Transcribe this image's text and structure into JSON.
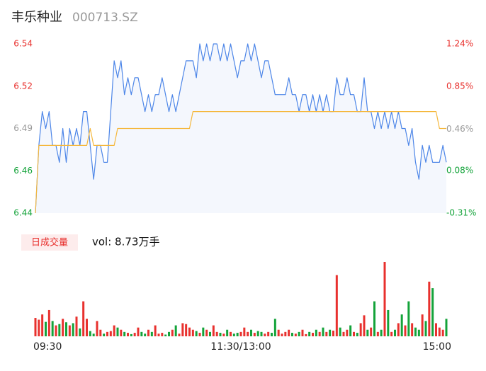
{
  "header": {
    "name": "丰乐种业",
    "code": "000713.SZ"
  },
  "chart_data": [
    {
      "type": "line",
      "xlim": [
        0,
        120
      ],
      "xticks": [
        {
          "value": 0,
          "label": "09:30"
        },
        {
          "value": 60,
          "label": "11:30/13:00"
        },
        {
          "value": 120,
          "label": "15:00"
        }
      ],
      "ylim": [
        6.44,
        6.54
      ],
      "yticks": [
        {
          "value": 6.44,
          "label": "6.44"
        },
        {
          "value": 6.465,
          "label": "6.46"
        },
        {
          "value": 6.49,
          "label": "6.49"
        },
        {
          "value": 6.515,
          "label": "6.52"
        },
        {
          "value": 6.54,
          "label": "6.54"
        }
      ],
      "ytick_colors": [
        "#14a33a",
        "#14a33a",
        "#999999",
        "#e8312e",
        "#e8312e"
      ],
      "y2lim": [
        -0.31,
        1.24
      ],
      "y2ticks": [
        {
          "value": -0.31,
          "label": "-0.31%"
        },
        {
          "value": 0.08,
          "label": "0.08%"
        },
        {
          "value": 0.46,
          "label": "0.46%"
        },
        {
          "value": 0.85,
          "label": "0.85%"
        },
        {
          "value": 1.24,
          "label": "1.24%"
        }
      ],
      "y2tick_colors": [
        "#14a33a",
        "#14a33a",
        "#999999",
        "#e8312e",
        "#e8312e"
      ],
      "area_color": "#f4f7fd",
      "series": [
        {
          "color": "#4d86e8",
          "values": [
            6.44,
            6.48,
            6.5,
            6.49,
            6.5,
            6.48,
            6.48,
            6.47,
            6.49,
            6.47,
            6.49,
            6.48,
            6.49,
            6.48,
            6.5,
            6.5,
            6.48,
            6.46,
            6.48,
            6.48,
            6.47,
            6.47,
            6.5,
            6.53,
            6.52,
            6.53,
            6.51,
            6.52,
            6.51,
            6.52,
            6.52,
            6.51,
            6.5,
            6.51,
            6.5,
            6.51,
            6.51,
            6.52,
            6.51,
            6.5,
            6.51,
            6.5,
            6.51,
            6.52,
            6.53,
            6.53,
            6.53,
            6.52,
            6.54,
            6.53,
            6.54,
            6.53,
            6.54,
            6.54,
            6.53,
            6.54,
            6.53,
            6.54,
            6.53,
            6.52,
            6.53,
            6.53,
            6.54,
            6.53,
            6.54,
            6.53,
            6.52,
            6.53,
            6.53,
            6.52,
            6.51,
            6.51,
            6.51,
            6.51,
            6.52,
            6.51,
            6.51,
            6.5,
            6.51,
            6.51,
            6.5,
            6.51,
            6.5,
            6.51,
            6.5,
            6.51,
            6.5,
            6.5,
            6.52,
            6.51,
            6.51,
            6.52,
            6.51,
            6.51,
            6.5,
            6.5,
            6.52,
            6.5,
            6.5,
            6.49,
            6.5,
            6.49,
            6.5,
            6.49,
            6.5,
            6.49,
            6.5,
            6.49,
            6.49,
            6.48,
            6.49,
            6.47,
            6.46,
            6.48,
            6.47,
            6.48,
            6.47,
            6.47,
            6.47,
            6.48,
            6.47
          ]
        },
        {
          "color": "#f5b83d",
          "values": [
            6.44,
            6.48,
            6.48,
            6.48,
            6.48,
            6.48,
            6.48,
            6.48,
            6.48,
            6.48,
            6.48,
            6.48,
            6.48,
            6.48,
            6.48,
            6.48,
            6.49,
            6.48,
            6.48,
            6.48,
            6.48,
            6.48,
            6.48,
            6.48,
            6.49,
            6.49,
            6.49,
            6.49,
            6.49,
            6.49,
            6.49,
            6.49,
            6.49,
            6.49,
            6.49,
            6.49,
            6.49,
            6.49,
            6.49,
            6.49,
            6.49,
            6.49,
            6.49,
            6.49,
            6.49,
            6.49,
            6.5,
            6.5,
            6.5,
            6.5,
            6.5,
            6.5,
            6.5,
            6.5,
            6.5,
            6.5,
            6.5,
            6.5,
            6.5,
            6.5,
            6.5,
            6.5,
            6.5,
            6.5,
            6.5,
            6.5,
            6.5,
            6.5,
            6.5,
            6.5,
            6.5,
            6.5,
            6.5,
            6.5,
            6.5,
            6.5,
            6.5,
            6.5,
            6.5,
            6.5,
            6.5,
            6.5,
            6.5,
            6.5,
            6.5,
            6.5,
            6.5,
            6.5,
            6.5,
            6.5,
            6.5,
            6.5,
            6.5,
            6.5,
            6.5,
            6.5,
            6.5,
            6.5,
            6.5,
            6.5,
            6.5,
            6.5,
            6.5,
            6.5,
            6.5,
            6.5,
            6.5,
            6.5,
            6.5,
            6.5,
            6.5,
            6.5,
            6.5,
            6.5,
            6.5,
            6.5,
            6.5,
            6.5,
            6.49,
            6.49,
            6.49
          ]
        }
      ]
    },
    {
      "type": "bar",
      "badge": "日成交量",
      "label": "vol: 8.73万手",
      "up_color": "#e8312e",
      "down_color": "#14a33a",
      "values": [
        420,
        380,
        500,
        330,
        600,
        350,
        250,
        280,
        400,
        320,
        250,
        300,
        450,
        180,
        800,
        400,
        120,
        60,
        350,
        150,
        60,
        100,
        120,
        250,
        200,
        150,
        100,
        80,
        50,
        80,
        200,
        100,
        60,
        150,
        100,
        250,
        60,
        80,
        40,
        100,
        150,
        250,
        60,
        300,
        280,
        200,
        150,
        120,
        80,
        200,
        150,
        100,
        250,
        100,
        80,
        60,
        150,
        100,
        60,
        80,
        100,
        200,
        100,
        150,
        80,
        120,
        100,
        60,
        100,
        80,
        400,
        150,
        60,
        100,
        150,
        80,
        60,
        100,
        150,
        50,
        100,
        80,
        150,
        100,
        200,
        100,
        150,
        130,
        1400,
        200,
        100,
        150,
        250,
        100,
        80,
        300,
        480,
        150,
        200,
        800,
        100,
        150,
        1700,
        600,
        100,
        150,
        300,
        500,
        250,
        800,
        300,
        200,
        150,
        500,
        350,
        1250,
        1100,
        300,
        200,
        150,
        400
      ]
    }
  ]
}
